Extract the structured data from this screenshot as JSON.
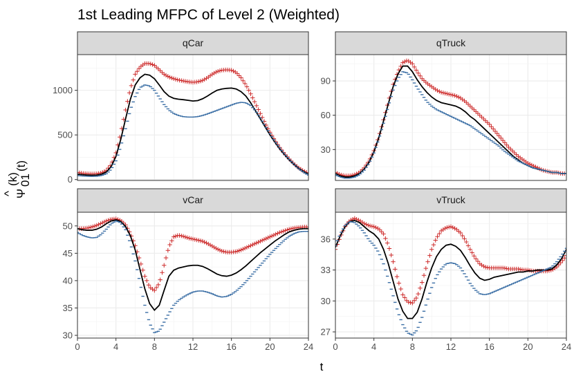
{
  "chart_data": {
    "type": "line",
    "title": "1st Leading MFPC of Level 2 (Weighted)",
    "xlabel": "t",
    "ylabel": {
      "hat": "^",
      "symbol": "Ψ",
      "superscript": "(k)",
      "subscript": "01",
      "argument": "(t)"
    },
    "legend": "none",
    "grid": true,
    "xlim": [
      0,
      24
    ],
    "xticks": [
      0,
      4,
      8,
      12,
      16,
      20,
      24
    ],
    "xtick_labels": [
      "0",
      "4",
      "8",
      "12",
      "16",
      "20",
      "24"
    ],
    "series_styles": [
      {
        "name": "plus",
        "marker": "+",
        "color": "#cd2b2b"
      },
      {
        "name": "mean",
        "marker": "line",
        "color": "#000000"
      },
      {
        "name": "minus",
        "marker": "-",
        "color": "#3a6ea5"
      }
    ],
    "panels": [
      {
        "strip": "qCar",
        "ylim": [
          -10,
          1400
        ],
        "yticks": [
          0,
          500,
          1000
        ],
        "ytick_labels": [
          "0",
          "500",
          "1000"
        ],
        "x": [
          0,
          0.5,
          1,
          1.5,
          2,
          2.5,
          3,
          3.5,
          4,
          4.5,
          5,
          5.5,
          6,
          6.5,
          7,
          7.5,
          8,
          8.5,
          9,
          9.5,
          10,
          10.5,
          11,
          11.5,
          12,
          12.5,
          13,
          13.5,
          14,
          14.5,
          15,
          15.5,
          16,
          16.5,
          17,
          17.5,
          18,
          18.5,
          19,
          19.5,
          20,
          20.5,
          21,
          21.5,
          22,
          22.5,
          23,
          23.5,
          24
        ],
        "series": [
          {
            "name": "plus",
            "values": [
              80,
              70,
              65,
              62,
              65,
              75,
              100,
              170,
              300,
              520,
              780,
              1020,
              1180,
              1260,
              1300,
              1300,
              1280,
              1230,
              1180,
              1150,
              1130,
              1115,
              1105,
              1095,
              1090,
              1095,
              1110,
              1140,
              1180,
              1210,
              1225,
              1230,
              1225,
              1200,
              1140,
              1060,
              960,
              850,
              740,
              630,
              530,
              440,
              360,
              290,
              230,
              175,
              130,
              95,
              70
            ]
          },
          {
            "name": "mean",
            "values": [
              60,
              55,
              50,
              48,
              50,
              60,
              85,
              145,
              260,
              450,
              680,
              900,
              1060,
              1140,
              1180,
              1170,
              1130,
              1060,
              985,
              935,
              910,
              900,
              895,
              888,
              880,
              885,
              905,
              935,
              970,
              1000,
              1015,
              1022,
              1025,
              1015,
              985,
              935,
              860,
              770,
              680,
              590,
              500,
              420,
              345,
              280,
              220,
              170,
              125,
              90,
              60
            ]
          },
          {
            "name": "minus",
            "values": [
              45,
              40,
              37,
              35,
              37,
              45,
              65,
              115,
              210,
              370,
              570,
              780,
              930,
              1030,
              1060,
              1050,
              1000,
              920,
              840,
              780,
              740,
              718,
              705,
              700,
              700,
              705,
              718,
              735,
              755,
              775,
              795,
              815,
              835,
              855,
              865,
              860,
              830,
              770,
              690,
              600,
              515,
              430,
              355,
              285,
              225,
              170,
              120,
              80,
              50
            ]
          }
        ]
      },
      {
        "strip": "qTruck",
        "ylim": [
          3,
          113
        ],
        "yticks": [
          30,
          60,
          90
        ],
        "ytick_labels": [
          "30",
          "60",
          "90"
        ],
        "x": [
          0,
          0.5,
          1,
          1.5,
          2,
          2.5,
          3,
          3.5,
          4,
          4.5,
          5,
          5.5,
          6,
          6.5,
          7,
          7.5,
          8,
          8.5,
          9,
          9.5,
          10,
          10.5,
          11,
          11.5,
          12,
          12.5,
          13,
          13.5,
          14,
          14.5,
          15,
          15.5,
          16,
          16.5,
          17,
          17.5,
          18,
          18.5,
          19,
          19.5,
          20,
          20.5,
          21,
          21.5,
          22,
          22.5,
          23,
          23.5,
          24
        ],
        "series": [
          {
            "name": "plus",
            "values": [
              10,
              8,
              7,
              7,
              8,
              10,
              14,
              20,
              29,
              41,
              56,
              72,
              87,
              98,
              106,
              108,
              105,
              98,
              92,
              88,
              85,
              82,
              80,
              79,
              78,
              77,
              75,
              72,
              68,
              64,
              60,
              56,
              52,
              47,
              42,
              37,
              32,
              28,
              24,
              21,
              18,
              16,
              14,
              12,
              11,
              10,
              10,
              9,
              9
            ]
          },
          {
            "name": "mean",
            "values": [
              9,
              7,
              6,
              6,
              7,
              9,
              13,
              19,
              28,
              40,
              55,
              70,
              85,
              96,
              103,
              103,
              98,
              91,
              85,
              80,
              76,
              73,
              71,
              70,
              69,
              68,
              66,
              63,
              59,
              56,
              52,
              48,
              44,
              40,
              36,
              32,
              28,
              24,
              21,
              18,
              16,
              14,
              13,
              12,
              11,
              10,
              10,
              9,
              9
            ]
          },
          {
            "name": "minus",
            "values": [
              8,
              6,
              5,
              5,
              6,
              8,
              12,
              18,
              27,
              39,
              53,
              68,
              82,
              92,
              98,
              97,
              91,
              84,
              78,
              72,
              68,
              65,
              63,
              61,
              59,
              57,
              55,
              53,
              51,
              48,
              45,
              42,
              39,
              36,
              33,
              29,
              26,
              23,
              20,
              18,
              16,
              14,
              13,
              12,
              11,
              10,
              10,
              9,
              9
            ]
          }
        ]
      },
      {
        "strip": "vCar",
        "ylim": [
          29.5,
          52.5
        ],
        "yticks": [
          30,
          35,
          40,
          45,
          50
        ],
        "ytick_labels": [
          "30",
          "35",
          "40",
          "45",
          "50"
        ],
        "x": [
          0,
          0.5,
          1,
          1.5,
          2,
          2.5,
          3,
          3.5,
          4,
          4.5,
          5,
          5.5,
          6,
          6.5,
          7,
          7.5,
          8,
          8.5,
          9,
          9.5,
          10,
          10.5,
          11,
          11.5,
          12,
          12.5,
          13,
          13.5,
          14,
          14.5,
          15,
          15.5,
          16,
          16.5,
          17,
          17.5,
          18,
          18.5,
          19,
          19.5,
          20,
          20.5,
          21,
          21.5,
          22,
          22.5,
          23,
          23.5,
          24
        ],
        "series": [
          {
            "name": "plus",
            "values": [
              49.5,
              49.5,
              49.6,
              49.8,
              50.1,
              50.5,
              50.9,
              51.2,
              51.3,
              51.0,
              50.2,
              48.6,
              46.4,
              43.6,
              40.8,
              38.8,
              38.2,
              39.5,
              42.8,
              46.2,
              48.0,
              48.3,
              48.1,
              47.8,
              47.6,
              47.4,
              47.2,
              46.8,
              46.3,
              45.8,
              45.4,
              45.2,
              45.2,
              45.3,
              45.6,
              46.0,
              46.4,
              46.8,
              47.2,
              47.6,
              48.0,
              48.4,
              48.8,
              49.1,
              49.4,
              49.6,
              49.7,
              49.8,
              49.8
            ]
          },
          {
            "name": "mean",
            "values": [
              49.5,
              49.3,
              49.2,
              49.2,
              49.4,
              49.8,
              50.4,
              50.9,
              51.1,
              50.8,
              49.9,
              48.2,
              45.6,
              42.0,
              38.5,
              35.8,
              34.6,
              35.5,
              38.2,
              40.8,
              41.9,
              42.3,
              42.5,
              42.7,
              42.8,
              42.8,
              42.6,
              42.2,
              41.7,
              41.2,
              40.9,
              40.8,
              41.0,
              41.4,
              42.0,
              42.7,
              43.5,
              44.3,
              45.1,
              45.8,
              46.5,
              47.2,
              47.8,
              48.4,
              48.9,
              49.2,
              49.4,
              49.5,
              49.5
            ]
          },
          {
            "name": "minus",
            "values": [
              48.8,
              48.3,
              48.0,
              47.8,
              47.9,
              48.5,
              49.4,
              50.4,
              50.9,
              50.6,
              49.3,
              46.8,
              43.6,
              39.6,
              35.5,
              32.2,
              30.5,
              30.8,
              32.4,
              34.0,
              35.5,
              36.4,
              37.0,
              37.5,
              37.9,
              38.1,
              38.1,
              37.9,
              37.6,
              37.2,
              37.0,
              37.1,
              37.5,
              38.1,
              38.9,
              39.8,
              40.8,
              41.8,
              42.8,
              43.8,
              44.8,
              45.7,
              46.6,
              47.4,
              48.1,
              48.6,
              48.9,
              49.0,
              49.0
            ]
          }
        ]
      },
      {
        "strip": "vTruck",
        "ylim": [
          26.4,
          38.6
        ],
        "yticks": [
          27,
          30,
          33,
          36
        ],
        "ytick_labels": [
          "27",
          "30",
          "33",
          "36"
        ],
        "x": [
          0,
          0.5,
          1,
          1.5,
          2,
          2.5,
          3,
          3.5,
          4,
          4.5,
          5,
          5.5,
          6,
          6.5,
          7,
          7.5,
          8,
          8.5,
          9,
          9.5,
          10,
          10.5,
          11,
          11.5,
          12,
          12.5,
          13,
          13.5,
          14,
          14.5,
          15,
          15.5,
          16,
          16.5,
          17,
          17.5,
          18,
          18.5,
          19,
          19.5,
          20,
          20.5,
          21,
          21.5,
          22,
          22.5,
          23,
          23.5,
          24
        ],
        "series": [
          {
            "name": "plus",
            "values": [
              35.0,
              36.2,
              37.2,
              37.8,
              38.0,
              37.8,
              37.5,
              37.3,
              37.2,
              37.0,
              36.5,
              35.4,
              33.8,
              32.0,
              30.6,
              29.9,
              29.8,
              30.4,
              31.8,
              33.5,
              35.0,
              36.1,
              36.8,
              37.1,
              37.2,
              37.0,
              36.6,
              35.9,
              35.0,
              34.2,
              33.6,
              33.3,
              33.2,
              33.2,
              33.2,
              33.2,
              33.1,
              33.1,
              33.1,
              33.0,
              33.0,
              32.9,
              32.9,
              32.9,
              32.9,
              33.0,
              33.3,
              33.8,
              34.4
            ]
          },
          {
            "name": "mean",
            "values": [
              35.2,
              36.3,
              37.2,
              37.7,
              37.8,
              37.6,
              37.2,
              36.8,
              36.5,
              36.0,
              35.0,
              33.6,
              31.9,
              30.2,
              29.0,
              28.3,
              28.3,
              28.9,
              30.2,
              31.8,
              33.2,
              34.3,
              35.0,
              35.4,
              35.5,
              35.3,
              34.9,
              34.2,
              33.4,
              32.7,
              32.2,
              32.0,
              32.1,
              32.3,
              32.4,
              32.5,
              32.6,
              32.7,
              32.8,
              32.8,
              32.9,
              32.9,
              33.0,
              33.0,
              33.0,
              33.1,
              33.5,
              34.1,
              35.0
            ]
          },
          {
            "name": "minus",
            "values": [
              35.4,
              36.5,
              37.3,
              37.7,
              37.6,
              37.2,
              36.6,
              35.9,
              35.4,
              34.7,
              33.6,
              32.1,
              30.5,
              28.9,
              27.7,
              26.9,
              26.7,
              27.2,
              28.4,
              29.9,
              31.3,
              32.4,
              33.1,
              33.6,
              33.7,
              33.6,
              33.2,
              32.5,
              31.7,
              31.1,
              30.7,
              30.6,
              30.7,
              30.9,
              31.1,
              31.3,
              31.5,
              31.7,
              31.9,
              32.1,
              32.3,
              32.5,
              32.7,
              32.9,
              33.1,
              33.3,
              33.8,
              34.4,
              35.1
            ]
          }
        ]
      }
    ]
  }
}
